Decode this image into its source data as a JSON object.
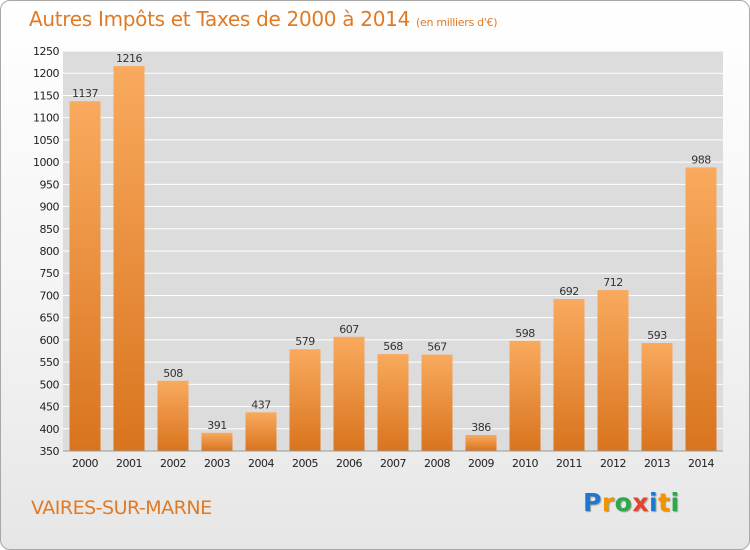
{
  "title": "Autres Impôts et Taxes de 2000 à 2014",
  "subtitle": "(en milliers d'€)",
  "city": "VAIRES-SUR-MARNE",
  "logo": {
    "text": "Proxiti",
    "letters": [
      {
        "char": "P",
        "color": "#1f78d0"
      },
      {
        "char": "r",
        "color": "#f29400"
      },
      {
        "char": "o",
        "color": "#2da84a"
      },
      {
        "char": "x",
        "color": "#e8412c"
      },
      {
        "char": "i",
        "color": "#1f78d0"
      },
      {
        "char": "t",
        "color": "#f29400"
      },
      {
        "char": "i",
        "color": "#2da84a"
      }
    ]
  },
  "colors": {
    "accent": "#e07a25",
    "bar_light": "#f9aa5e",
    "bar_dark": "#d9741e",
    "plot_background": "#dcdcdc"
  },
  "chart_data": {
    "type": "bar",
    "title": "Autres Impôts et Taxes de 2000 à 2014",
    "subtitle": "(en milliers d'€)",
    "xlabel": "",
    "ylabel": "",
    "categories": [
      "2000",
      "2001",
      "2002",
      "2003",
      "2004",
      "2005",
      "2006",
      "2007",
      "2008",
      "2009",
      "2010",
      "2011",
      "2012",
      "2013",
      "2014"
    ],
    "values": [
      1137,
      1216,
      508,
      391,
      437,
      579,
      607,
      568,
      567,
      386,
      598,
      692,
      712,
      593,
      988
    ],
    "ylim": [
      350,
      1250
    ],
    "yticks": [
      350,
      400,
      450,
      500,
      550,
      600,
      650,
      700,
      750,
      800,
      850,
      900,
      950,
      1000,
      1050,
      1100,
      1150,
      1200,
      1250
    ],
    "grid": true,
    "legend": "none"
  }
}
